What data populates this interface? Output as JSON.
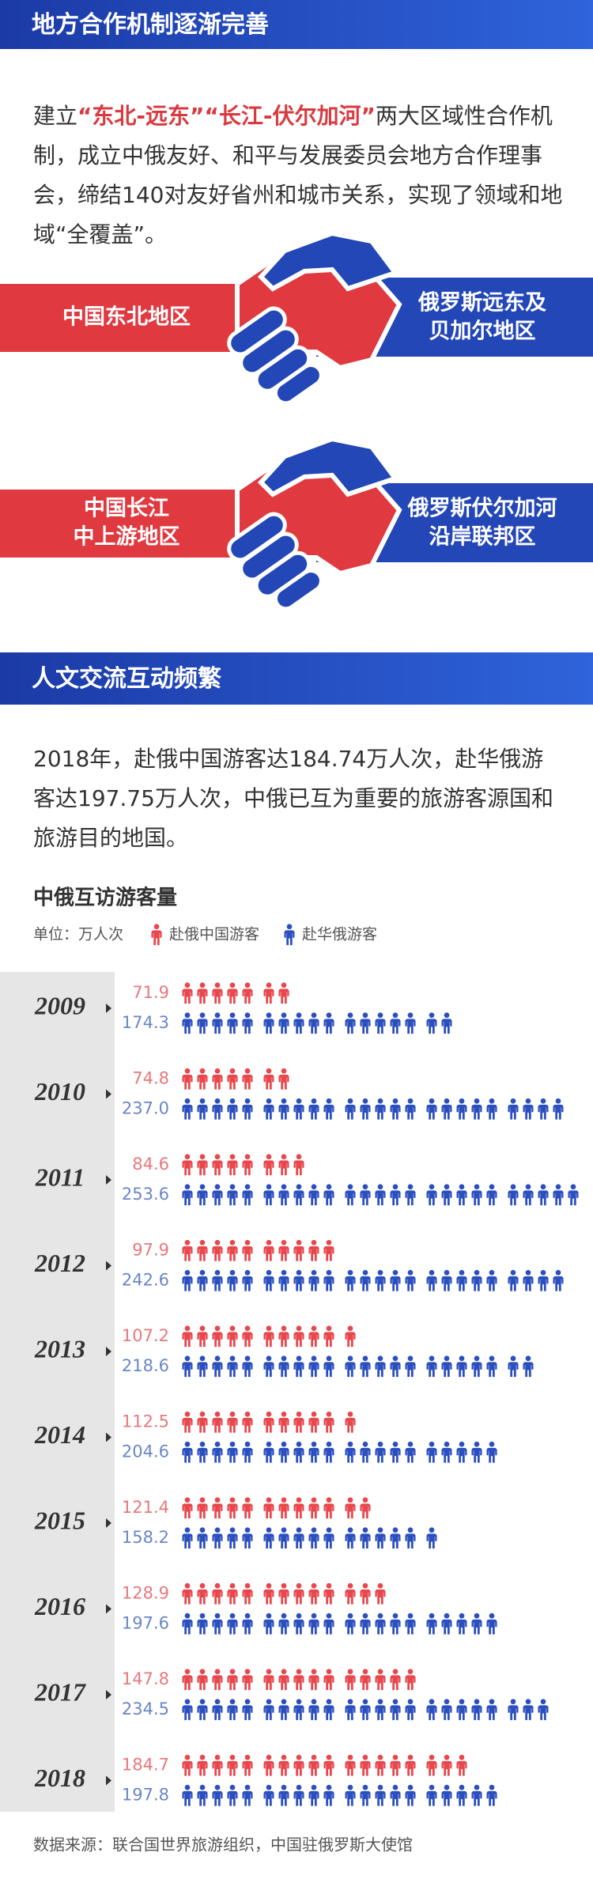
{
  "section1": {
    "title": "地方合作机制逐渐完善",
    "intro": [
      "建立",
      "“东北-远东”",
      "“长江-伏尔加河”",
      "两大区域性合作机制，成立中俄友好、和平与发展委员会地方合作理事会，缔结140对友好省州和城市关系，实现了领域和地域“全覆盖”。"
    ],
    "pairs": [
      {
        "china": [
          "中国东北地区"
        ],
        "russia": [
          "俄罗斯远东及",
          "贝加尔地区"
        ]
      },
      {
        "china": [
          "中国长江",
          "中上游地区"
        ],
        "russia": [
          "俄罗斯伏尔加河",
          "沿岸联邦区"
        ]
      }
    ]
  },
  "section2": {
    "title": "人文交流互动频繁",
    "intro": "2018年，赴俄中国游客达184.74万人次，赴华俄游客达197.75万人次，中俄已互为重要的旅游客源国和旅游目的地国。"
  },
  "chart_data": {
    "type": "pictogram",
    "title": "中俄互访游客量",
    "unit": "单位：万人次",
    "categories": [
      "2009",
      "2010",
      "2011",
      "2012",
      "2013",
      "2014",
      "2015",
      "2016",
      "2017",
      "2018"
    ],
    "series": [
      {
        "name": "赴俄中国游客",
        "color": "#e8474d",
        "label_color": "#e8787c",
        "values": [
          71.9,
          74.8,
          84.6,
          97.9,
          107.2,
          112.5,
          121.4,
          128.9,
          147.8,
          184.7
        ],
        "value_labels": [
          "71.9",
          "74.8",
          "84.6",
          "97.9",
          "107.2",
          "112.5",
          "121.4",
          "128.9",
          "147.8",
          "184.7"
        ]
      },
      {
        "name": "赴华俄游客",
        "color": "#2b4fbf",
        "label_color": "#6a86c8",
        "values": [
          174.3,
          237.0,
          253.6,
          242.6,
          218.6,
          204.6,
          158.2,
          197.6,
          234.5,
          197.8
        ],
        "value_labels": [
          "174.3",
          "237.0",
          "253.6",
          "242.6",
          "218.6",
          "204.6",
          "158.2",
          "197.6",
          "234.5",
          "197.8"
        ]
      }
    ]
  },
  "source": "数据来源：联合国世界旅游组织，中国驻俄罗斯大使馆"
}
